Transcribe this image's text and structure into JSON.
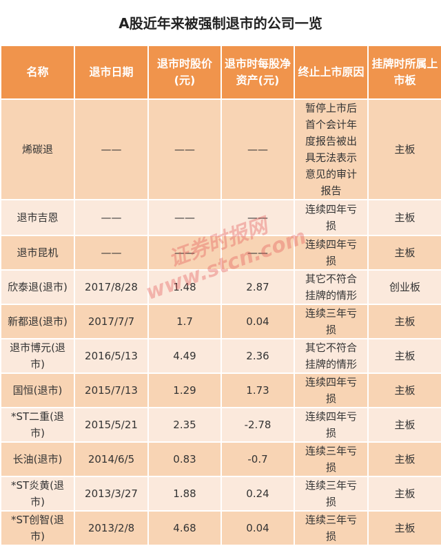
{
  "title": "A股近年来被强制退市的公司一览",
  "headers": [
    "名称",
    "退市日期",
    "退市时股价(元)",
    "退市时每股净资产(元)",
    "终止上市原因",
    "挂牌时所属上市板"
  ],
  "rows": [
    [
      "烯碳退",
      "——",
      "——",
      "——",
      "暂停上市后首个会计年度报告被出具无法表示意见的审计报告",
      "主板"
    ],
    [
      "退市吉恩",
      "——",
      "——",
      "——",
      "连续四年亏损",
      "主板"
    ],
    [
      "退市昆机",
      "——",
      "——",
      "——",
      "连续四年亏损",
      "主板"
    ],
    [
      "欣泰退(退市)",
      "2017/8/28",
      "1.48",
      "2.87",
      "其它不符合挂牌的情形",
      "创业板"
    ],
    [
      "新都退(退市)",
      "2017/7/7",
      "1.7",
      "0.04",
      "连续三年亏损",
      "主板"
    ],
    [
      "退市博元(退市)",
      "2016/5/13",
      "4.49",
      "2.36",
      "其它不符合挂牌的情形",
      "主板"
    ],
    [
      "国恒(退市)",
      "2015/7/13",
      "1.29",
      "1.73",
      "连续四年亏损",
      "主板"
    ],
    [
      "*ST二重(退市)",
      "2015/5/21",
      "2.35",
      "-2.78",
      "连续四年亏损",
      "主板"
    ],
    [
      "长油(退市)",
      "2014/6/5",
      "0.83",
      "-0.7",
      "连续三年亏损",
      "主板"
    ],
    [
      "*ST炎黄(退市)",
      "2013/3/27",
      "1.88",
      "0.24",
      "连续三年亏损",
      "主板"
    ],
    [
      "*ST创智(退市)",
      "2013/2/8",
      "4.68",
      "0.04",
      "连续三年亏损",
      "主板"
    ]
  ],
  "watermark": {
    "line1": "证券时报网",
    "line2": "www.stcn.com"
  },
  "colors": {
    "header": "#f0944c",
    "row_dark": "#f8d4b4",
    "row_light": "#fbe9dc"
  }
}
